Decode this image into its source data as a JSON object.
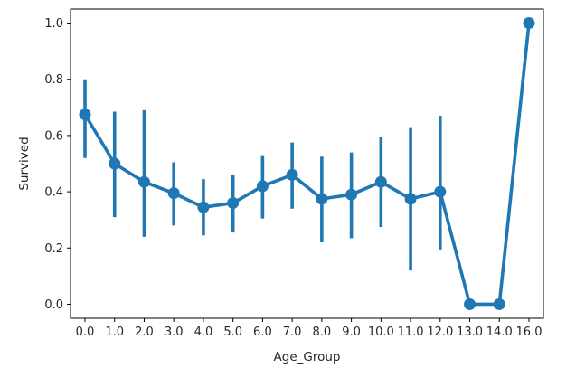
{
  "chart_data": {
    "type": "line",
    "title": "",
    "xlabel": "Age_Group",
    "ylabel": "Survived",
    "ylim": [
      -0.05,
      1.05
    ],
    "yticks": [
      "0.0",
      "0.2",
      "0.4",
      "0.6",
      "0.8",
      "1.0"
    ],
    "categories": [
      "0.0",
      "1.0",
      "2.0",
      "3.0",
      "4.0",
      "5.0",
      "6.0",
      "7.0",
      "8.0",
      "9.0",
      "10.0",
      "11.0",
      "12.0",
      "13.0",
      "14.0",
      "16.0"
    ],
    "series": [
      {
        "values": [
          0.675,
          0.5,
          0.435,
          0.395,
          0.345,
          0.36,
          0.42,
          0.46,
          0.375,
          0.39,
          0.435,
          0.375,
          0.4,
          0.0,
          0.0,
          1.0
        ],
        "ci_low": [
          0.52,
          0.31,
          0.24,
          0.28,
          0.245,
          0.255,
          0.305,
          0.34,
          0.22,
          0.235,
          0.275,
          0.12,
          0.195,
          null,
          null,
          null
        ],
        "ci_high": [
          0.8,
          0.685,
          0.69,
          0.505,
          0.445,
          0.46,
          0.53,
          0.575,
          0.525,
          0.54,
          0.595,
          0.63,
          0.67,
          null,
          null,
          null
        ],
        "color": "#1f77b4"
      }
    ],
    "grid": false,
    "legend": "none"
  },
  "colors": {
    "series": "#1f77b4",
    "axis": "#000000",
    "text": "#262626"
  }
}
